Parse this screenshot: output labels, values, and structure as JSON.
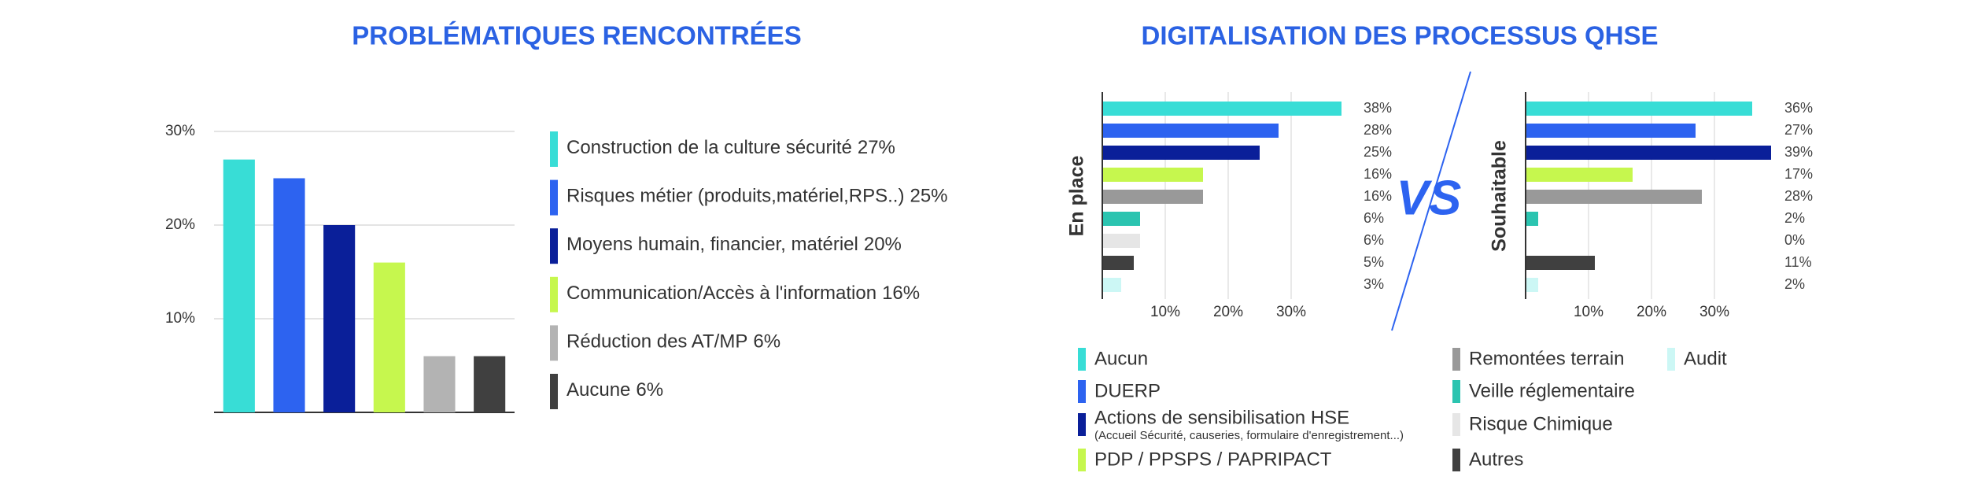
{
  "chart_data": [
    {
      "type": "bar",
      "title": "PROBLÉMATIQUES RENCONTRÉES",
      "categories": [
        "Construction de la culture sécurité",
        "Risques métier (produits,matériel,RPS..)",
        "Moyens humain, financier, matériel",
        "Communication/Accès à l'information",
        "Réduction des AT/MP",
        "Aucune"
      ],
      "values": [
        27,
        25,
        20,
        16,
        6,
        6
      ],
      "value_labels": [
        "27%",
        "25%",
        "20%",
        "16%",
        "6%",
        "6%"
      ],
      "colors": [
        "#38ddd6",
        "#2d63f0",
        "#0a1f99",
        "#c6f74e",
        "#b3b3b3",
        "#404040"
      ],
      "ylim": [
        0,
        30
      ],
      "yticks": [
        {
          "value": 10,
          "label": "10%"
        },
        {
          "value": 20,
          "label": "20%"
        },
        {
          "value": 30,
          "label": "30%"
        }
      ],
      "grid": true
    },
    {
      "type": "hbar",
      "title": "DIGITALISATION DES PROCESSUS QHSE",
      "categories": [
        "Aucun",
        "DUERP",
        "Actions de sensibilisation HSE",
        "PDP / PPSPS / PAPRIPACT",
        "Remontées terrain",
        "Veille réglementaire",
        "Risque Chimique",
        "Autres",
        "Audit"
      ],
      "colors": [
        "#38ddd6",
        "#2d63f0",
        "#0a1f99",
        "#c6f74e",
        "#999999",
        "#2bc4b0",
        "#e6e6e6",
        "#404040",
        "#ccf7f5"
      ],
      "series": [
        {
          "name": "En place",
          "values": [
            38,
            28,
            25,
            16,
            16,
            6,
            6,
            5,
            3
          ],
          "value_labels": [
            "38%",
            "28%",
            "25%",
            "16%",
            "16%",
            "6%",
            "6%",
            "5%",
            "3%"
          ]
        },
        {
          "name": "Souhaitable",
          "values": [
            36,
            27,
            39,
            17,
            28,
            2,
            0,
            11,
            2
          ],
          "value_labels": [
            "36%",
            "27%",
            "39%",
            "17%",
            "28%",
            "2%",
            "0%",
            "11%",
            "2%"
          ]
        }
      ],
      "xlim": [
        0,
        40
      ],
      "xticks": [
        {
          "value": 10,
          "label": "10%"
        },
        {
          "value": 20,
          "label": "20%"
        },
        {
          "value": 30,
          "label": "30%"
        }
      ],
      "grid": true,
      "annotations": [
        "VS",
        "(Accueil Sécurité, causeries, formulaire d'enregistrement...)"
      ]
    }
  ]
}
